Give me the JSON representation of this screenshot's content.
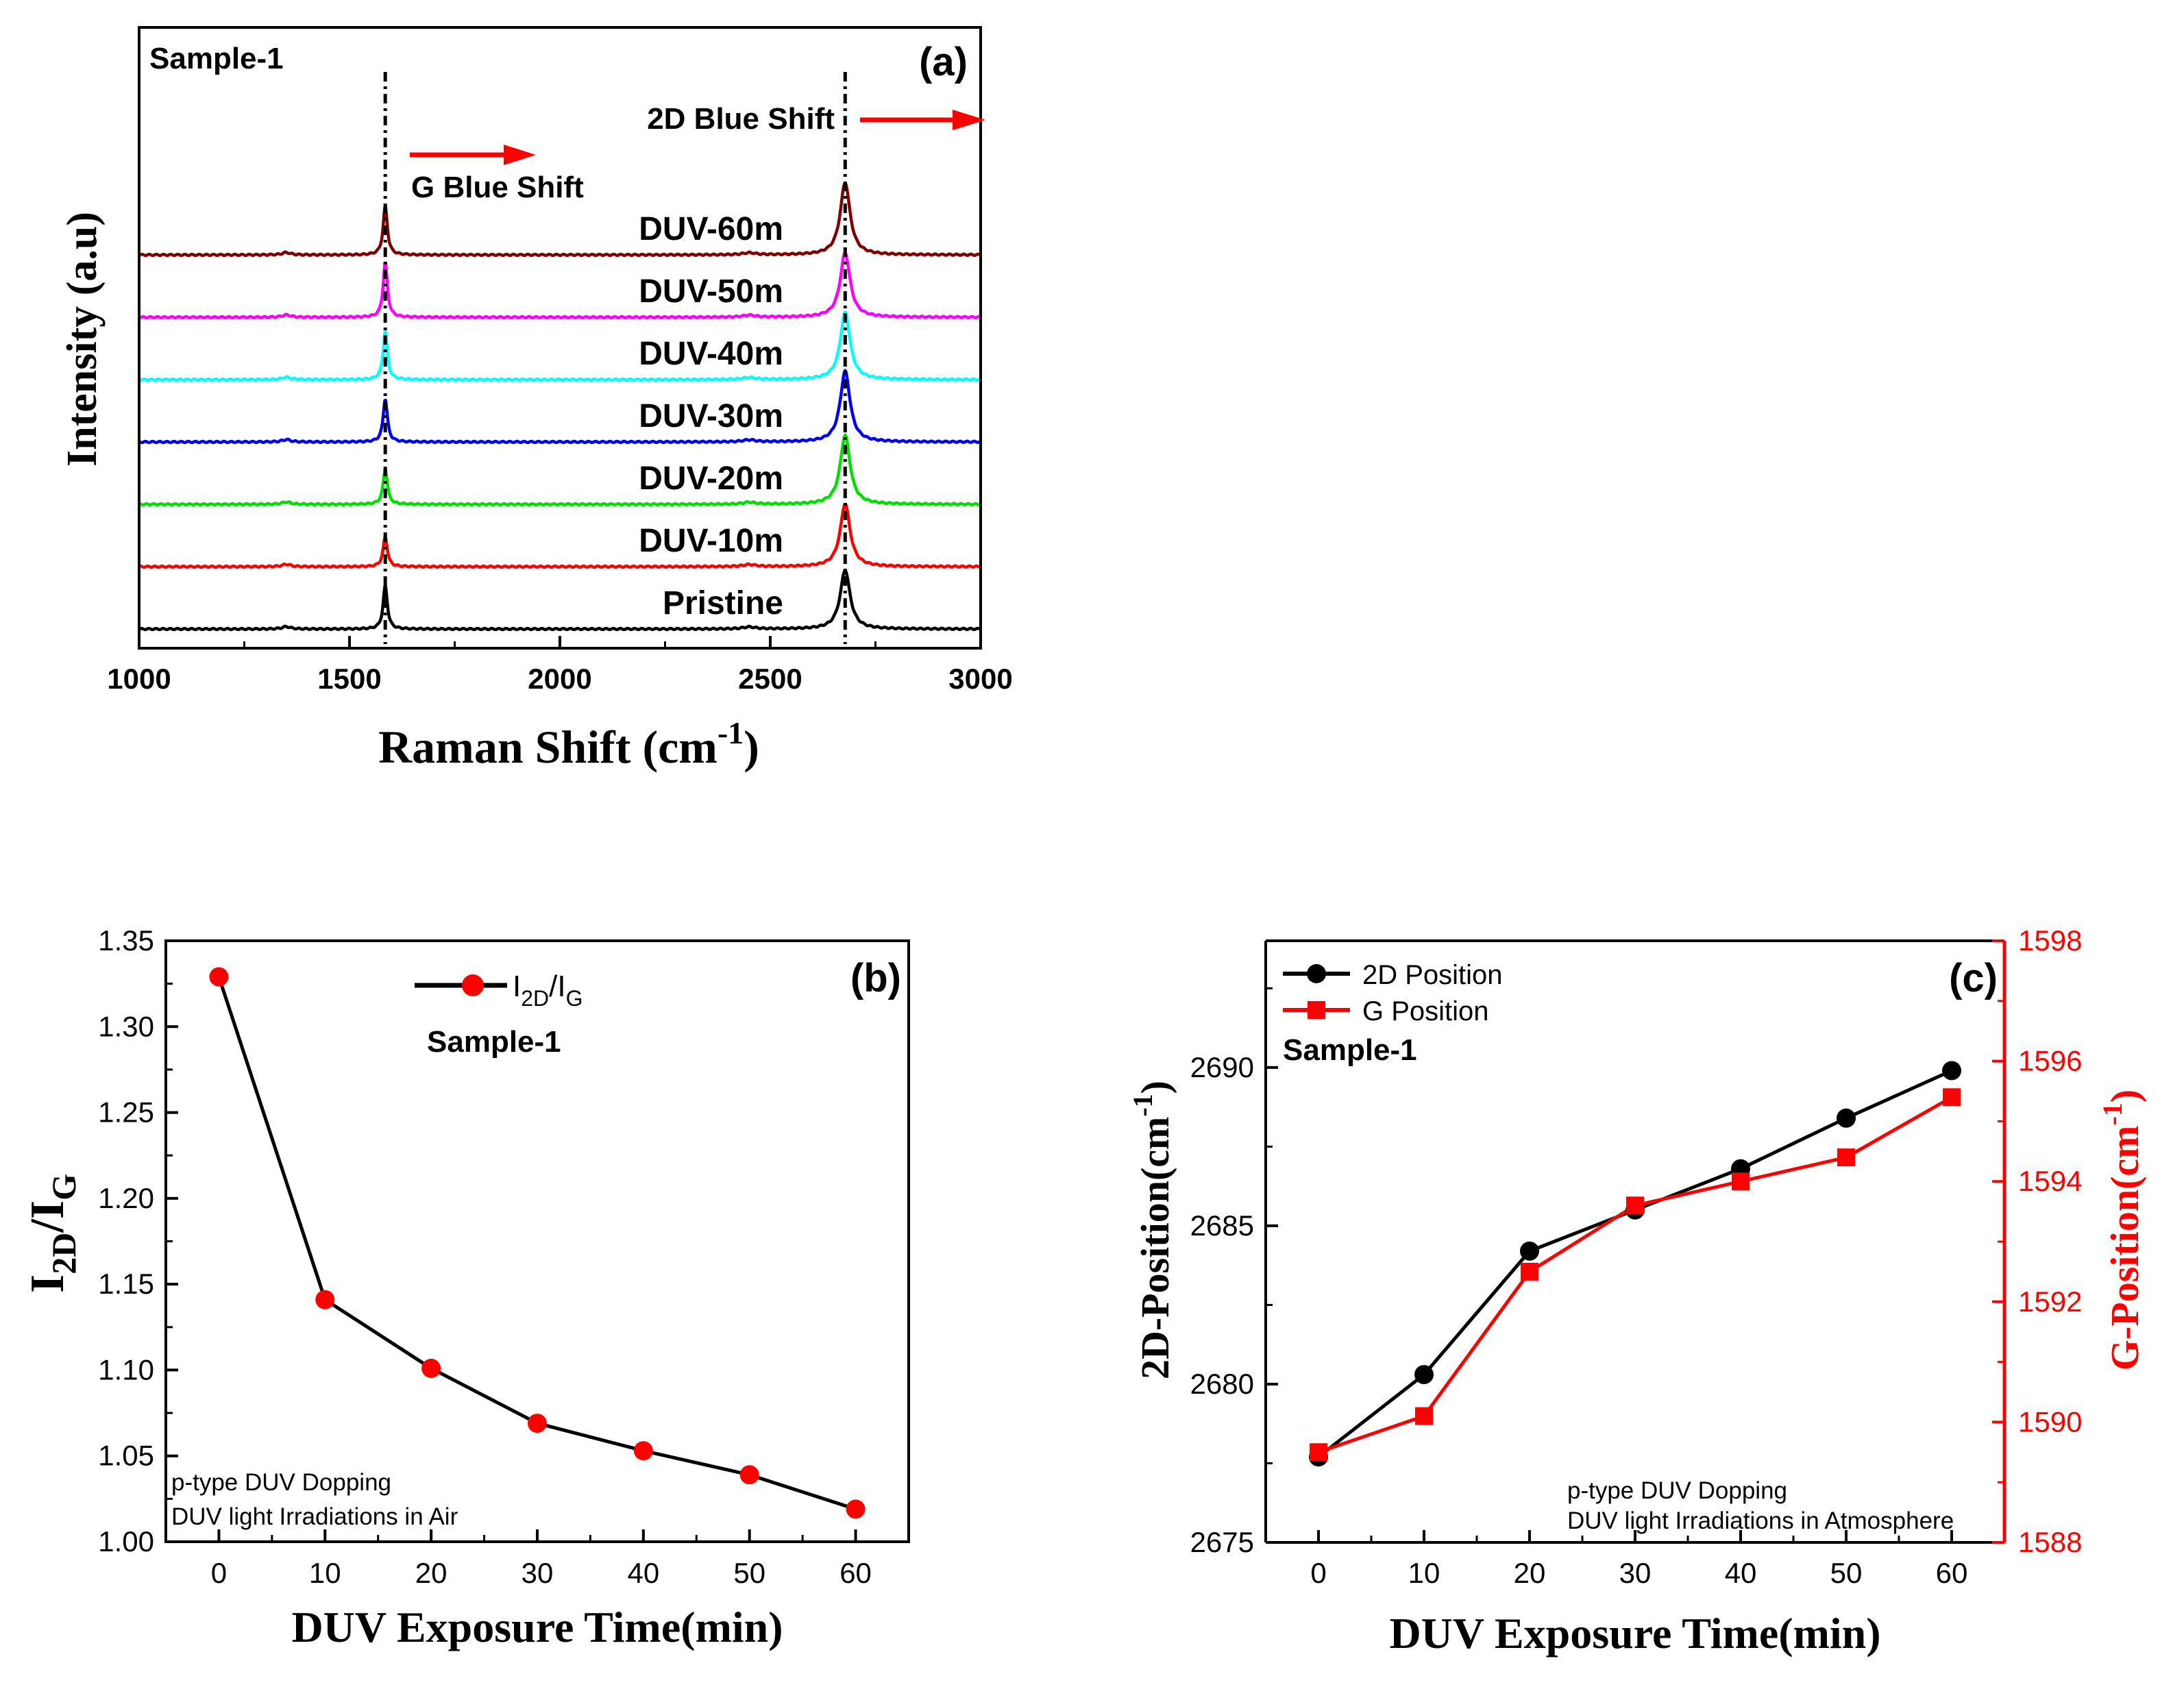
{
  "chart_data": [
    {
      "id": "a",
      "type": "line",
      "panel_label": "(a)",
      "sample_label": "Sample-1",
      "xlabel": "Raman Shift (cm",
      "xlabel_sup": "-1",
      "xlabel_close": ")",
      "ylabel": "Intensity (a.u)",
      "xlim": [
        1000,
        3000
      ],
      "xticks": [
        1000,
        1500,
        2000,
        2500,
        3000
      ],
      "xtick_labels": [
        "1000",
        "1500",
        "2000",
        "2500",
        "3000"
      ],
      "g_peak_position": 1585,
      "d2_peak_position": 2678,
      "d_band_position": 1350,
      "annotations": {
        "g_shift": "G Blue Shift",
        "d2_shift": "2D Blue Shift"
      },
      "series": [
        {
          "name": "Pristine",
          "color": "#000000",
          "g_height": 0.55,
          "d2_height": 0.75
        },
        {
          "name": "DUV-10m",
          "color": "#ff0000",
          "g_height": 0.38,
          "d2_height": 0.8
        },
        {
          "name": "DUV-20m",
          "color": "#00e000",
          "g_height": 0.45,
          "d2_height": 0.88
        },
        {
          "name": "DUV-30m",
          "color": "#0000ff",
          "g_height": 0.55,
          "d2_height": 0.9
        },
        {
          "name": "DUV-40m",
          "color": "#00ffff",
          "g_height": 0.62,
          "d2_height": 0.85
        },
        {
          "name": "DUV-50m",
          "color": "#ff00ff",
          "g_height": 0.7,
          "d2_height": 0.82
        },
        {
          "name": "DUV-60m",
          "color": "#800000",
          "g_height": 0.62,
          "d2_height": 0.92
        }
      ]
    },
    {
      "id": "b",
      "type": "line",
      "panel_label": "(b)",
      "sample_label": "Sample-1",
      "xlabel": "DUV Exposure Time(min)",
      "ylabel_main": "I",
      "ylabel_sub1": "2D",
      "ylabel_mid": "/I",
      "ylabel_sub2": "G",
      "xlim": [
        -5,
        65
      ],
      "ylim": [
        1.0,
        1.35
      ],
      "xticks": [
        0,
        10,
        20,
        30,
        40,
        50,
        60
      ],
      "xtick_labels": [
        "0",
        "10",
        "20",
        "30",
        "40",
        "50",
        "60"
      ],
      "yticks": [
        1.0,
        1.05,
        1.1,
        1.15,
        1.2,
        1.25,
        1.3,
        1.35
      ],
      "ytick_labels": [
        "1.00",
        "1.05",
        "1.10",
        "1.15",
        "1.20",
        "1.25",
        "1.30",
        "1.35"
      ],
      "legend_main": "I",
      "legend_sub1": "2D",
      "legend_mid": "/I",
      "legend_sub2": "G",
      "notes": [
        "p-type DUV Dopping",
        "DUV light Irradiations in Air"
      ],
      "x": [
        0,
        10,
        20,
        30,
        40,
        50,
        60
      ],
      "values": [
        1.329,
        1.141,
        1.101,
        1.069,
        1.053,
        1.039,
        1.019
      ],
      "line_color": "#000000",
      "marker_color": "#ff0000"
    },
    {
      "id": "c",
      "type": "line",
      "panel_label": "(c)",
      "sample_label": "Sample-1",
      "xlabel": "DUV Exposure Time(min)",
      "ylabel_left": "2D-Position(cm",
      "ylabel_left_sup": "-1",
      "ylabel_left_close": ")",
      "ylabel_right": "G-Position(cm",
      "ylabel_right_sup": "-1",
      "ylabel_right_close": ")",
      "xlim": [
        -5,
        65
      ],
      "ylim_left": [
        2675,
        2694
      ],
      "ylim_right": [
        1588,
        1598
      ],
      "xticks": [
        0,
        10,
        20,
        30,
        40,
        50,
        60
      ],
      "xtick_labels": [
        "0",
        "10",
        "20",
        "30",
        "40",
        "50",
        "60"
      ],
      "yticks_left": [
        2675,
        2680,
        2685,
        2690
      ],
      "ytick_labels_left": [
        "2675",
        "2680",
        "2685",
        "2690"
      ],
      "yticks_right": [
        1588,
        1590,
        1592,
        1594,
        1596,
        1598
      ],
      "ytick_labels_right": [
        "1588",
        "1590",
        "1592",
        "1594",
        "1596",
        "1598"
      ],
      "notes": [
        "p-type DUV Dopping",
        "DUV light Irradiations in Atmosphere"
      ],
      "x": [
        0,
        10,
        20,
        30,
        40,
        50,
        60
      ],
      "series": [
        {
          "name": "2D Position",
          "axis": "left",
          "color": "#000000",
          "marker": "circle",
          "values": [
            2677.7,
            2680.3,
            2684.2,
            2685.5,
            2686.8,
            2688.4,
            2689.9
          ]
        },
        {
          "name": "G Position",
          "axis": "right",
          "color": "#ff0000",
          "marker": "square",
          "values": [
            1589.5,
            1590.1,
            1592.5,
            1593.6,
            1594.0,
            1594.4,
            1595.4
          ]
        }
      ]
    }
  ]
}
